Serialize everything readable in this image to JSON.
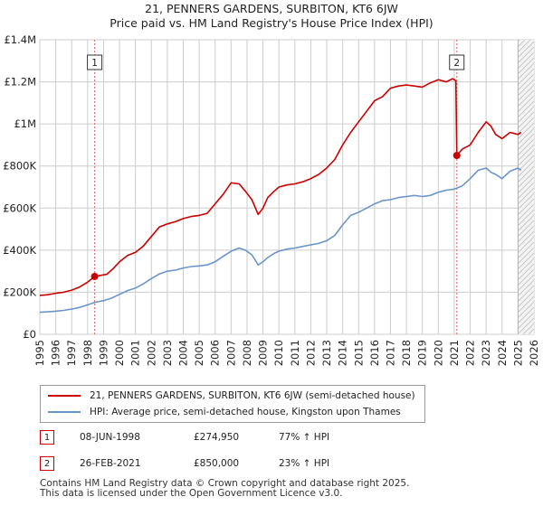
{
  "chart_data": {
    "type": "line",
    "title": "21, PENNERS GARDENS, SURBITON, KT6 6JW",
    "subtitle": "Price paid vs. HM Land Registry's House Price Index (HPI)",
    "xlim": [
      1995,
      2026
    ],
    "ylim": [
      0,
      1400000
    ],
    "x_ticks": [
      "1995",
      "1996",
      "1997",
      "1998",
      "1999",
      "2000",
      "2001",
      "2002",
      "2003",
      "2004",
      "2005",
      "2006",
      "2007",
      "2008",
      "2009",
      "2010",
      "2011",
      "2012",
      "2013",
      "2014",
      "2015",
      "2016",
      "2017",
      "2018",
      "2019",
      "2020",
      "2021",
      "2022",
      "2023",
      "2024",
      "2025",
      "2026"
    ],
    "y_ticks": [
      {
        "value": 0,
        "label": "£0"
      },
      {
        "value": 200000,
        "label": "£200K"
      },
      {
        "value": 400000,
        "label": "£400K"
      },
      {
        "value": 600000,
        "label": "£600K"
      },
      {
        "value": 800000,
        "label": "£800K"
      },
      {
        "value": 1000000,
        "label": "£1M"
      },
      {
        "value": 1200000,
        "label": "£1.2M"
      },
      {
        "value": 1400000,
        "label": "£1.4M"
      }
    ],
    "series": [
      {
        "name": "21, PENNERS GARDENS, SURBITON, KT6 6JW (semi-detached house)",
        "color": "#cc0000",
        "x": [
          1995.0,
          1995.5,
          1996.0,
          1996.5,
          1997.0,
          1997.5,
          1998.0,
          1998.44,
          1998.8,
          1999.2,
          1999.6,
          2000.0,
          2000.5,
          2001.0,
          2001.5,
          2002.0,
          2002.5,
          2003.0,
          2003.5,
          2004.0,
          2004.5,
          2005.0,
          2005.5,
          2006.0,
          2006.5,
          2007.0,
          2007.5,
          2007.9,
          2008.3,
          2008.7,
          2009.0,
          2009.3,
          2009.7,
          2010.0,
          2010.5,
          2011.0,
          2011.5,
          2012.0,
          2012.5,
          2013.0,
          2013.5,
          2014.0,
          2014.5,
          2015.0,
          2015.5,
          2016.0,
          2016.5,
          2017.0,
          2017.5,
          2018.0,
          2018.5,
          2019.0,
          2019.5,
          2020.0,
          2020.5,
          2020.9,
          2021.1,
          2021.16,
          2021.5,
          2022.0,
          2022.5,
          2023.0,
          2023.3,
          2023.6,
          2024.0,
          2024.5,
          2025.0,
          2025.2
        ],
        "values": [
          185000,
          188000,
          195000,
          200000,
          210000,
          225000,
          248000,
          274950,
          280000,
          285000,
          312000,
          345000,
          375000,
          390000,
          420000,
          465000,
          510000,
          525000,
          535000,
          550000,
          560000,
          565000,
          575000,
          620000,
          665000,
          720000,
          715000,
          680000,
          640000,
          570000,
          600000,
          650000,
          680000,
          700000,
          710000,
          715000,
          725000,
          740000,
          760000,
          790000,
          830000,
          900000,
          960000,
          1010000,
          1060000,
          1110000,
          1130000,
          1170000,
          1180000,
          1185000,
          1180000,
          1175000,
          1195000,
          1210000,
          1200000,
          1215000,
          1205000,
          850000,
          880000,
          900000,
          960000,
          1010000,
          990000,
          950000,
          930000,
          960000,
          950000,
          960000
        ]
      },
      {
        "name": "HPI: Average price, semi-detached house, Kingston upon Thames",
        "color": "#6a95c9",
        "x": [
          1995.0,
          1995.5,
          1996.0,
          1996.5,
          1997.0,
          1997.5,
          1998.0,
          1998.5,
          1999.0,
          1999.5,
          2000.0,
          2000.5,
          2001.0,
          2001.5,
          2002.0,
          2002.5,
          2003.0,
          2003.5,
          2004.0,
          2004.5,
          2005.0,
          2005.5,
          2006.0,
          2006.5,
          2007.0,
          2007.5,
          2007.9,
          2008.3,
          2008.7,
          2009.0,
          2009.3,
          2009.7,
          2010.0,
          2010.5,
          2011.0,
          2011.5,
          2012.0,
          2012.5,
          2013.0,
          2013.5,
          2014.0,
          2014.5,
          2015.0,
          2015.5,
          2016.0,
          2016.5,
          2017.0,
          2017.5,
          2018.0,
          2018.5,
          2019.0,
          2019.5,
          2020.0,
          2020.5,
          2021.0,
          2021.5,
          2022.0,
          2022.5,
          2023.0,
          2023.3,
          2023.6,
          2024.0,
          2024.5,
          2025.0,
          2025.2
        ],
        "values": [
          105000,
          107000,
          110000,
          114000,
          120000,
          128000,
          140000,
          153000,
          160000,
          172000,
          190000,
          208000,
          220000,
          240000,
          265000,
          287000,
          300000,
          305000,
          315000,
          322000,
          325000,
          330000,
          345000,
          370000,
          395000,
          410000,
          400000,
          378000,
          330000,
          345000,
          365000,
          385000,
          395000,
          405000,
          410000,
          418000,
          425000,
          432000,
          445000,
          470000,
          520000,
          565000,
          580000,
          600000,
          620000,
          635000,
          640000,
          650000,
          655000,
          660000,
          655000,
          660000,
          675000,
          685000,
          690000,
          705000,
          740000,
          780000,
          790000,
          770000,
          760000,
          740000,
          775000,
          790000,
          780000
        ]
      }
    ],
    "transactions": [
      {
        "label": "1",
        "x": 1998.44,
        "value": 274950
      },
      {
        "label": "2",
        "x": 2021.16,
        "value": 850000
      }
    ],
    "forecast_start": 2025.0
  },
  "legend": {
    "property": "21, PENNERS GARDENS, SURBITON, KT6 6JW (semi-detached house)",
    "hpi": "HPI: Average price, semi-detached house, Kingston upon Thames"
  },
  "table": [
    {
      "label": "1",
      "date": "08-JUN-1998",
      "price": "£274,950",
      "hpi": "77% ↑ HPI"
    },
    {
      "label": "2",
      "date": "26-FEB-2021",
      "price": "£850,000",
      "hpi": "23% ↑ HPI"
    }
  ],
  "footer": {
    "line1": "Contains HM Land Registry data © Crown copyright and database right 2025.",
    "line2": "This data is licensed under the Open Government Licence v3.0."
  }
}
